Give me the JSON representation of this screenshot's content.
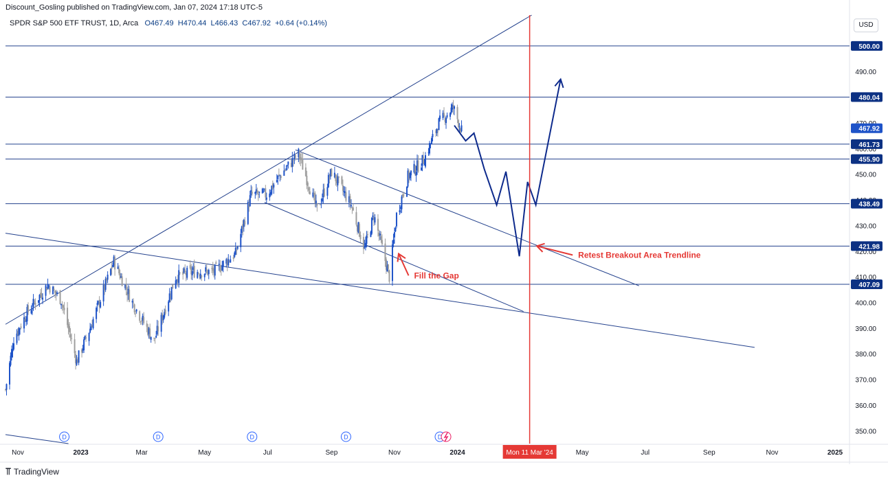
{
  "header": {
    "publisher": "Discount_Gosling published on TradingView.com, Jan 07, 2024 17:18 UTC-5"
  },
  "legend": {
    "symbol": "SPDR S&P 500 ETF TRUST, 1D, Arca",
    "open": "O467.49",
    "high": "H470.44",
    "low": "L466.43",
    "close": "C467.92",
    "change": "+0.64 (+0.14%)"
  },
  "currency_button": "USD",
  "footer": {
    "brand": "TradingView",
    "brand_icon": "tradingview-logo-icon"
  },
  "colors": {
    "accent": "#0a3c84",
    "red": "#e53935",
    "bull": "#1e53c8",
    "bear": "#9e9e9e",
    "line": "#22408c"
  },
  "chart_data": {
    "type": "candlestick",
    "title": "",
    "ylim": [
      345,
      512
    ],
    "x_range": [
      "2022-10-20",
      "2025-01-15"
    ],
    "y_ticks": [
      {
        "value": 350,
        "label": "350.00"
      },
      {
        "value": 360,
        "label": "360.00"
      },
      {
        "value": 370,
        "label": "370.00"
      },
      {
        "value": 380,
        "label": "380.00"
      },
      {
        "value": 390,
        "label": "390.00"
      },
      {
        "value": 400,
        "label": "400.00"
      },
      {
        "value": 410,
        "label": "410.00"
      },
      {
        "value": 420,
        "label": "420.00"
      },
      {
        "value": 430,
        "label": "430.00"
      },
      {
        "value": 440,
        "label": "440.00"
      },
      {
        "value": 450,
        "label": "450.00"
      },
      {
        "value": 460,
        "label": "460.00"
      },
      {
        "value": 470,
        "label": "470.00"
      },
      {
        "value": 490,
        "label": "490.00"
      }
    ],
    "x_ticks": [
      {
        "date": "2022-11-01",
        "label": "Nov",
        "bold": false
      },
      {
        "date": "2023-01-01",
        "label": "2023",
        "bold": true
      },
      {
        "date": "2023-03-01",
        "label": "Mar",
        "bold": false
      },
      {
        "date": "2023-05-01",
        "label": "May",
        "bold": false
      },
      {
        "date": "2023-07-01",
        "label": "Jul",
        "bold": false
      },
      {
        "date": "2023-09-01",
        "label": "Sep",
        "bold": false
      },
      {
        "date": "2023-11-01",
        "label": "Nov",
        "bold": false
      },
      {
        "date": "2024-01-01",
        "label": "2024",
        "bold": true
      },
      {
        "date": "2024-05-01",
        "label": "May",
        "bold": false
      },
      {
        "date": "2024-07-01",
        "label": "Jul",
        "bold": false
      },
      {
        "date": "2024-09-01",
        "label": "Sep",
        "bold": false
      },
      {
        "date": "2024-11-01",
        "label": "Nov",
        "bold": false
      },
      {
        "date": "2025-01-01",
        "label": "2025",
        "bold": true
      }
    ],
    "price_levels": [
      {
        "value": 500.0,
        "label": "500.00"
      },
      {
        "value": 480.04,
        "label": "480.04"
      },
      {
        "value": 461.73,
        "label": "461.73"
      },
      {
        "value": 455.9,
        "label": "455.90"
      },
      {
        "value": 438.49,
        "label": "438.49"
      },
      {
        "value": 421.98,
        "label": "421.98"
      },
      {
        "value": 407.09,
        "label": "407.09"
      }
    ],
    "current_price": {
      "value": 467.92,
      "label": "467.92"
    },
    "vertical_marker": {
      "date": "2024-03-11",
      "label": "Mon 11 Mar '24"
    },
    "trendlines": [
      {
        "from": [
          "2022-10-20",
          391.5
        ],
        "to": [
          "2024-03-13",
          512.0
        ]
      },
      {
        "from": [
          "2022-10-20",
          427.0
        ],
        "to": [
          "2024-10-15",
          382.5
        ]
      },
      {
        "from": [
          "2023-07-28",
          459.5
        ],
        "to": [
          "2024-06-25",
          406.5
        ]
      },
      {
        "from": [
          "2023-06-28",
          439.0
        ],
        "to": [
          "2024-03-05",
          396.5
        ]
      },
      {
        "from": [
          "2022-10-20",
          348.5
        ],
        "to": [
          "2022-12-20",
          345.0
        ]
      }
    ],
    "projection_path": [
      [
        "2023-12-29",
        469.0
      ],
      [
        "2024-01-09",
        463.0
      ],
      [
        "2024-01-17",
        466.0
      ],
      [
        "2024-01-27",
        452.0
      ],
      [
        "2024-02-08",
        438.0
      ],
      [
        "2024-02-17",
        451.0
      ],
      [
        "2024-03-01",
        418.0
      ],
      [
        "2024-03-09",
        447.0
      ],
      [
        "2024-03-17",
        438.0
      ],
      [
        "2024-04-10",
        487.0
      ]
    ],
    "annotations": [
      {
        "text": "Fill the Gap",
        "date": "2023-11-20",
        "price": 410.5,
        "arrow_to": [
          "2023-11-05",
          419.0
        ]
      },
      {
        "text": "Retest Breakout Area Trendline",
        "date": "2024-04-27",
        "price": 418.5,
        "arrow_to": [
          "2024-03-18",
          422.0
        ]
      }
    ],
    "dividends": [
      {
        "date": "2022-12-16",
        "label": "D"
      },
      {
        "date": "2023-03-17",
        "label": "D"
      },
      {
        "date": "2023-06-16",
        "label": "D"
      },
      {
        "date": "2023-09-15",
        "label": "D"
      },
      {
        "date": "2023-12-15",
        "label": "D"
      }
    ],
    "event_icon": {
      "date": "2023-12-21",
      "name": "earnings-lightning-icon"
    },
    "price_anchors": [
      [
        "2022-10-20",
        366
      ],
      [
        "2022-10-28",
        386
      ],
      [
        "2022-11-10",
        396
      ],
      [
        "2022-11-30",
        407
      ],
      [
        "2022-12-13",
        401
      ],
      [
        "2022-12-28",
        377
      ],
      [
        "2023-01-10",
        390
      ],
      [
        "2023-02-02",
        416
      ],
      [
        "2023-02-20",
        400
      ],
      [
        "2023-03-13",
        385
      ],
      [
        "2023-04-03",
        410
      ],
      [
        "2023-04-20",
        412
      ],
      [
        "2023-05-10",
        412
      ],
      [
        "2023-05-31",
        419
      ],
      [
        "2023-06-15",
        442
      ],
      [
        "2023-06-30",
        442
      ],
      [
        "2023-07-12",
        449
      ],
      [
        "2023-07-31",
        458
      ],
      [
        "2023-08-18",
        436
      ],
      [
        "2023-09-01",
        451
      ],
      [
        "2023-09-20",
        438
      ],
      [
        "2023-10-03",
        421
      ],
      [
        "2023-10-12",
        434
      ],
      [
        "2023-10-27",
        410
      ],
      [
        "2023-11-03",
        434
      ],
      [
        "2023-11-14",
        449
      ],
      [
        "2023-11-30",
        456
      ],
      [
        "2023-12-14",
        470
      ],
      [
        "2023-12-28",
        476
      ],
      [
        "2024-01-05",
        467
      ]
    ]
  }
}
